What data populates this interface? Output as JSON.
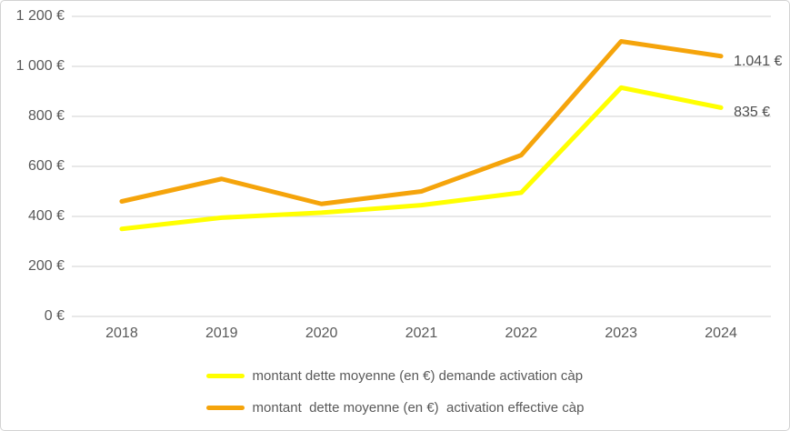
{
  "chart_data": {
    "type": "line",
    "categories": [
      "2018",
      "2019",
      "2020",
      "2021",
      "2022",
      "2023",
      "2024"
    ],
    "series": [
      {
        "name": "montant dette moyenne (en €) demande activation càp",
        "color": "#ffff00",
        "values": [
          350,
          395,
          415,
          445,
          495,
          915,
          835
        ],
        "end_label": "835 €"
      },
      {
        "name": "montant  dette moyenne (en €)  activation effective càp",
        "color": "#f5a40b",
        "values": [
          460,
          550,
          450,
          500,
          645,
          1100,
          1041
        ],
        "end_label": "1.041 €"
      }
    ],
    "y_ticks": [
      "1 200 €",
      "1 000 €",
      "800 €",
      "600 €",
      "400 €",
      "200 €",
      "0 €"
    ],
    "y_tick_values": [
      1200,
      1000,
      800,
      600,
      400,
      200,
      0
    ],
    "ylim": [
      0,
      1200
    ],
    "grid": true,
    "gridline_color": "#d9d9d9",
    "axis_text_color": "#595959",
    "legend_position": "bottom",
    "title": "",
    "xlabel": "",
    "ylabel": ""
  }
}
